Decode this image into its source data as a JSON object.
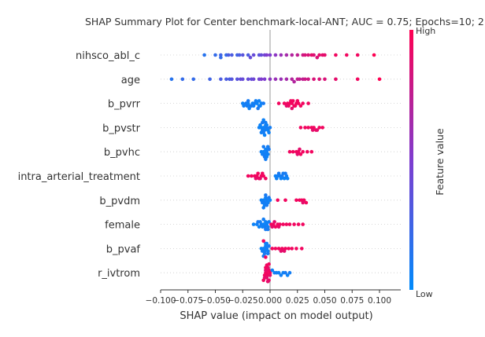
{
  "chart_data": {
    "type": "scatter",
    "title": "SHAP Summary Plot for Center benchmark-local-ANT; AUC = 0.75; Epochs=10; 2",
    "xlabel": "SHAP value (impact on model output)",
    "ylabel": "",
    "xlim": [
      -0.1,
      0.12
    ],
    "x_ticks": [
      -0.1,
      -0.075,
      -0.05,
      -0.025,
      0.0,
      0.025,
      0.05,
      0.075,
      0.1
    ],
    "x_tick_labels": [
      "−0.100",
      "−0.075",
      "−0.050",
      "−0.025",
      "0.000",
      "0.025",
      "0.050",
      "0.075",
      "0.100"
    ],
    "grid": false,
    "colorbar": {
      "label": "Feature value",
      "high": "High",
      "low": "Low",
      "low_color": "#008bfb",
      "high_color": "#ff0052"
    },
    "features": [
      {
        "name": "nihsco_abl_c",
        "points": [
          [
            -0.06,
            0.15
          ],
          [
            -0.05,
            0.2
          ],
          [
            -0.045,
            0.25
          ],
          [
            -0.04,
            0.2
          ],
          [
            -0.035,
            0.3
          ],
          [
            -0.03,
            0.25
          ],
          [
            -0.025,
            0.35
          ],
          [
            -0.02,
            0.3
          ],
          [
            -0.015,
            0.4
          ],
          [
            -0.01,
            0.35
          ],
          [
            -0.005,
            0.45
          ],
          [
            -0.045,
            0.2
          ],
          [
            -0.038,
            0.3
          ],
          [
            -0.028,
            0.3
          ],
          [
            -0.018,
            0.4
          ],
          [
            -0.008,
            0.4
          ],
          [
            -0.003,
            0.5
          ],
          [
            0.0,
            0.5
          ],
          [
            0.005,
            0.55
          ],
          [
            0.01,
            0.6
          ],
          [
            0.015,
            0.65
          ],
          [
            0.02,
            0.7
          ],
          [
            0.025,
            0.75
          ],
          [
            0.03,
            0.8
          ],
          [
            0.035,
            0.85
          ],
          [
            0.04,
            0.85
          ],
          [
            0.045,
            0.9
          ],
          [
            0.05,
            0.9
          ],
          [
            0.06,
            0.95
          ],
          [
            0.07,
            0.95
          ],
          [
            0.08,
            0.95
          ],
          [
            0.095,
            1.0
          ],
          [
            0.032,
            0.85
          ],
          [
            0.038,
            0.9
          ],
          [
            0.043,
            0.85
          ],
          [
            0.048,
            0.9
          ]
        ]
      },
      {
        "name": "age",
        "points": [
          [
            -0.09,
            0.15
          ],
          [
            -0.08,
            0.2
          ],
          [
            -0.07,
            0.2
          ],
          [
            -0.055,
            0.25
          ],
          [
            -0.045,
            0.3
          ],
          [
            -0.04,
            0.3
          ],
          [
            -0.035,
            0.35
          ],
          [
            -0.03,
            0.35
          ],
          [
            -0.025,
            0.4
          ],
          [
            -0.02,
            0.4
          ],
          [
            -0.015,
            0.45
          ],
          [
            -0.01,
            0.45
          ],
          [
            -0.005,
            0.5
          ],
          [
            -0.037,
            0.3
          ],
          [
            -0.027,
            0.4
          ],
          [
            -0.017,
            0.4
          ],
          [
            -0.008,
            0.5
          ],
          [
            0.0,
            0.55
          ],
          [
            0.005,
            0.6
          ],
          [
            0.01,
            0.6
          ],
          [
            0.015,
            0.65
          ],
          [
            0.02,
            0.7
          ],
          [
            0.025,
            0.75
          ],
          [
            0.03,
            0.75
          ],
          [
            0.035,
            0.8
          ],
          [
            0.04,
            0.85
          ],
          [
            0.05,
            0.85
          ],
          [
            0.06,
            0.9
          ],
          [
            0.08,
            0.95
          ],
          [
            0.1,
            1.0
          ],
          [
            0.022,
            0.7
          ],
          [
            0.027,
            0.75
          ],
          [
            0.032,
            0.8
          ],
          [
            0.045,
            0.85
          ]
        ]
      },
      {
        "name": "b_pvrr",
        "points": [
          [
            -0.025,
            0.05
          ],
          [
            -0.022,
            0.1
          ],
          [
            -0.02,
            0.05
          ],
          [
            -0.018,
            0.08
          ],
          [
            -0.016,
            0.05
          ],
          [
            -0.014,
            0.1
          ],
          [
            -0.012,
            0.05
          ],
          [
            -0.01,
            0.08
          ],
          [
            -0.008,
            0.06
          ],
          [
            -0.006,
            0.1
          ],
          [
            -0.02,
            0.1
          ],
          [
            -0.015,
            0.06
          ],
          [
            -0.01,
            0.06
          ],
          [
            -0.024,
            0.07
          ],
          [
            -0.019,
            0.06
          ],
          [
            -0.013,
            0.08
          ],
          [
            -0.009,
            0.05
          ],
          [
            -0.017,
            0.1
          ],
          [
            -0.011,
            0.1
          ],
          [
            -0.021,
            0.08
          ],
          [
            0.008,
            0.95
          ],
          [
            0.013,
            0.95
          ],
          [
            0.016,
            0.95
          ],
          [
            0.018,
            0.95
          ],
          [
            0.02,
            0.95
          ],
          [
            0.022,
            0.95
          ],
          [
            0.024,
            0.95
          ],
          [
            0.026,
            0.95
          ],
          [
            0.028,
            0.95
          ],
          [
            0.03,
            0.95
          ],
          [
            0.035,
            0.95
          ],
          [
            0.017,
            0.95
          ],
          [
            0.019,
            0.95
          ],
          [
            0.021,
            0.95
          ],
          [
            0.023,
            0.95
          ],
          [
            0.025,
            0.95
          ],
          [
            0.02,
            0.9
          ],
          [
            0.015,
            0.9
          ]
        ]
      },
      {
        "name": "b_pvstr",
        "points": [
          [
            -0.01,
            0.05
          ],
          [
            -0.008,
            0.06
          ],
          [
            -0.007,
            0.08
          ],
          [
            -0.006,
            0.05
          ],
          [
            -0.005,
            0.07
          ],
          [
            -0.004,
            0.06
          ],
          [
            -0.003,
            0.1
          ],
          [
            -0.002,
            0.05
          ],
          [
            0.0,
            0.08
          ],
          [
            -0.009,
            0.05
          ],
          [
            -0.006,
            0.1
          ],
          [
            -0.004,
            0.08
          ],
          [
            -0.008,
            0.07
          ],
          [
            -0.005,
            0.05
          ],
          [
            -0.003,
            0.06
          ],
          [
            -0.007,
            0.1
          ],
          [
            -0.001,
            0.06
          ],
          [
            -0.006,
            0.06
          ],
          [
            0.028,
            0.95
          ],
          [
            0.032,
            0.95
          ],
          [
            0.035,
            0.95
          ],
          [
            0.038,
            0.95
          ],
          [
            0.04,
            0.95
          ],
          [
            0.042,
            0.95
          ],
          [
            0.045,
            0.95
          ],
          [
            0.048,
            0.95
          ],
          [
            0.039,
            0.9
          ],
          [
            0.043,
            0.9
          ]
        ]
      },
      {
        "name": "b_pvhc",
        "points": [
          [
            -0.008,
            0.05
          ],
          [
            -0.006,
            0.06
          ],
          [
            -0.005,
            0.08
          ],
          [
            -0.004,
            0.05
          ],
          [
            -0.003,
            0.07
          ],
          [
            -0.002,
            0.06
          ],
          [
            -0.001,
            0.1
          ],
          [
            -0.007,
            0.07
          ],
          [
            -0.005,
            0.1
          ],
          [
            -0.003,
            0.05
          ],
          [
            -0.006,
            0.09
          ],
          [
            -0.004,
            0.08
          ],
          [
            -0.002,
            0.08
          ],
          [
            0.018,
            0.95
          ],
          [
            0.021,
            0.95
          ],
          [
            0.024,
            0.95
          ],
          [
            0.026,
            0.95
          ],
          [
            0.028,
            0.95
          ],
          [
            0.03,
            0.95
          ],
          [
            0.034,
            0.95
          ],
          [
            0.038,
            0.95
          ],
          [
            0.025,
            0.9
          ],
          [
            0.027,
            0.9
          ]
        ]
      },
      {
        "name": "intra_arterial_treatment",
        "points": [
          [
            -0.02,
            0.95
          ],
          [
            -0.017,
            0.95
          ],
          [
            -0.014,
            0.95
          ],
          [
            -0.012,
            0.95
          ],
          [
            -0.01,
            0.95
          ],
          [
            -0.008,
            0.95
          ],
          [
            -0.006,
            0.95
          ],
          [
            -0.004,
            0.95
          ],
          [
            -0.013,
            0.9
          ],
          [
            -0.009,
            0.9
          ],
          [
            -0.011,
            0.95
          ],
          [
            -0.007,
            0.95
          ],
          [
            0.005,
            0.05
          ],
          [
            0.007,
            0.08
          ],
          [
            0.009,
            0.05
          ],
          [
            0.011,
            0.1
          ],
          [
            0.013,
            0.05
          ],
          [
            0.015,
            0.07
          ],
          [
            0.016,
            0.05
          ],
          [
            0.01,
            0.06
          ],
          [
            0.008,
            0.1
          ],
          [
            0.012,
            0.08
          ],
          [
            0.014,
            0.1
          ],
          [
            0.006,
            0.06
          ]
        ]
      },
      {
        "name": "b_pvdm",
        "points": [
          [
            -0.008,
            0.05
          ],
          [
            -0.006,
            0.06
          ],
          [
            -0.005,
            0.08
          ],
          [
            -0.004,
            0.05
          ],
          [
            -0.003,
            0.07
          ],
          [
            -0.002,
            0.06
          ],
          [
            -0.001,
            0.1
          ],
          [
            0.0,
            0.05
          ],
          [
            -0.007,
            0.08
          ],
          [
            -0.005,
            0.06
          ],
          [
            -0.003,
            0.09
          ],
          [
            -0.004,
            0.1
          ],
          [
            -0.006,
            0.07
          ],
          [
            0.007,
            0.95
          ],
          [
            0.014,
            0.95
          ],
          [
            0.024,
            0.95
          ],
          [
            0.027,
            0.95
          ],
          [
            0.029,
            0.95
          ],
          [
            0.031,
            0.95
          ],
          [
            0.033,
            0.95
          ],
          [
            0.03,
            0.9
          ]
        ]
      },
      {
        "name": "female",
        "points": [
          [
            -0.015,
            0.05
          ],
          [
            -0.012,
            0.06
          ],
          [
            -0.01,
            0.05
          ],
          [
            -0.008,
            0.08
          ],
          [
            -0.006,
            0.05
          ],
          [
            -0.005,
            0.1
          ],
          [
            -0.004,
            0.06
          ],
          [
            -0.003,
            0.05
          ],
          [
            -0.002,
            0.07
          ],
          [
            -0.001,
            0.08
          ],
          [
            -0.007,
            0.06
          ],
          [
            -0.009,
            0.07
          ],
          [
            -0.004,
            0.09
          ],
          [
            -0.002,
            0.1
          ],
          [
            -0.006,
            0.08
          ],
          [
            -0.011,
            0.1
          ],
          [
            0.001,
            0.95
          ],
          [
            0.003,
            0.95
          ],
          [
            0.005,
            0.95
          ],
          [
            0.007,
            0.95
          ],
          [
            0.009,
            0.95
          ],
          [
            0.012,
            0.95
          ],
          [
            0.015,
            0.95
          ],
          [
            0.018,
            0.95
          ],
          [
            0.022,
            0.95
          ],
          [
            0.026,
            0.95
          ],
          [
            0.03,
            0.95
          ],
          [
            0.004,
            0.9
          ],
          [
            0.008,
            0.9
          ],
          [
            0.002,
            0.9
          ]
        ]
      },
      {
        "name": "b_pvaf",
        "points": [
          [
            -0.008,
            0.05
          ],
          [
            -0.006,
            0.06
          ],
          [
            -0.005,
            0.08
          ],
          [
            -0.004,
            0.05
          ],
          [
            -0.003,
            0.07
          ],
          [
            -0.002,
            0.06
          ],
          [
            -0.001,
            0.1
          ],
          [
            -0.007,
            0.07
          ],
          [
            -0.005,
            0.1
          ],
          [
            -0.004,
            0.08
          ],
          [
            -0.002,
            0.08
          ],
          [
            -0.003,
            0.06
          ],
          [
            -0.006,
            0.09
          ],
          [
            -0.006,
            0.95
          ],
          [
            -0.004,
            0.95
          ],
          [
            0.002,
            0.95
          ],
          [
            0.005,
            0.95
          ],
          [
            0.008,
            0.95
          ],
          [
            0.011,
            0.95
          ],
          [
            0.014,
            0.95
          ],
          [
            0.017,
            0.95
          ],
          [
            0.02,
            0.95
          ],
          [
            0.024,
            0.95
          ],
          [
            0.029,
            0.95
          ],
          [
            0.01,
            0.9
          ],
          [
            0.013,
            0.9
          ]
        ]
      },
      {
        "name": "r_ivtrom",
        "points": [
          [
            -0.004,
            0.95
          ],
          [
            -0.003,
            0.95
          ],
          [
            -0.002,
            0.95
          ],
          [
            -0.001,
            0.95
          ],
          [
            0.0,
            0.95
          ],
          [
            -0.005,
            0.95
          ],
          [
            -0.003,
            0.9
          ],
          [
            -0.002,
            0.9
          ],
          [
            -0.004,
            0.9
          ],
          [
            -0.001,
            0.9
          ],
          [
            -0.003,
            0.95
          ],
          [
            -0.002,
            0.95
          ],
          [
            -0.001,
            0.95
          ],
          [
            0.0,
            0.9
          ],
          [
            -0.005,
            0.9
          ],
          [
            -0.004,
            0.95
          ],
          [
            -0.006,
            0.95
          ],
          [
            -0.002,
            0.9
          ],
          [
            0.002,
            0.05
          ],
          [
            0.004,
            0.06
          ],
          [
            0.006,
            0.08
          ],
          [
            0.008,
            0.05
          ],
          [
            0.01,
            0.07
          ],
          [
            0.012,
            0.06
          ],
          [
            0.014,
            0.1
          ],
          [
            0.016,
            0.05
          ],
          [
            0.018,
            0.08
          ]
        ]
      }
    ]
  }
}
